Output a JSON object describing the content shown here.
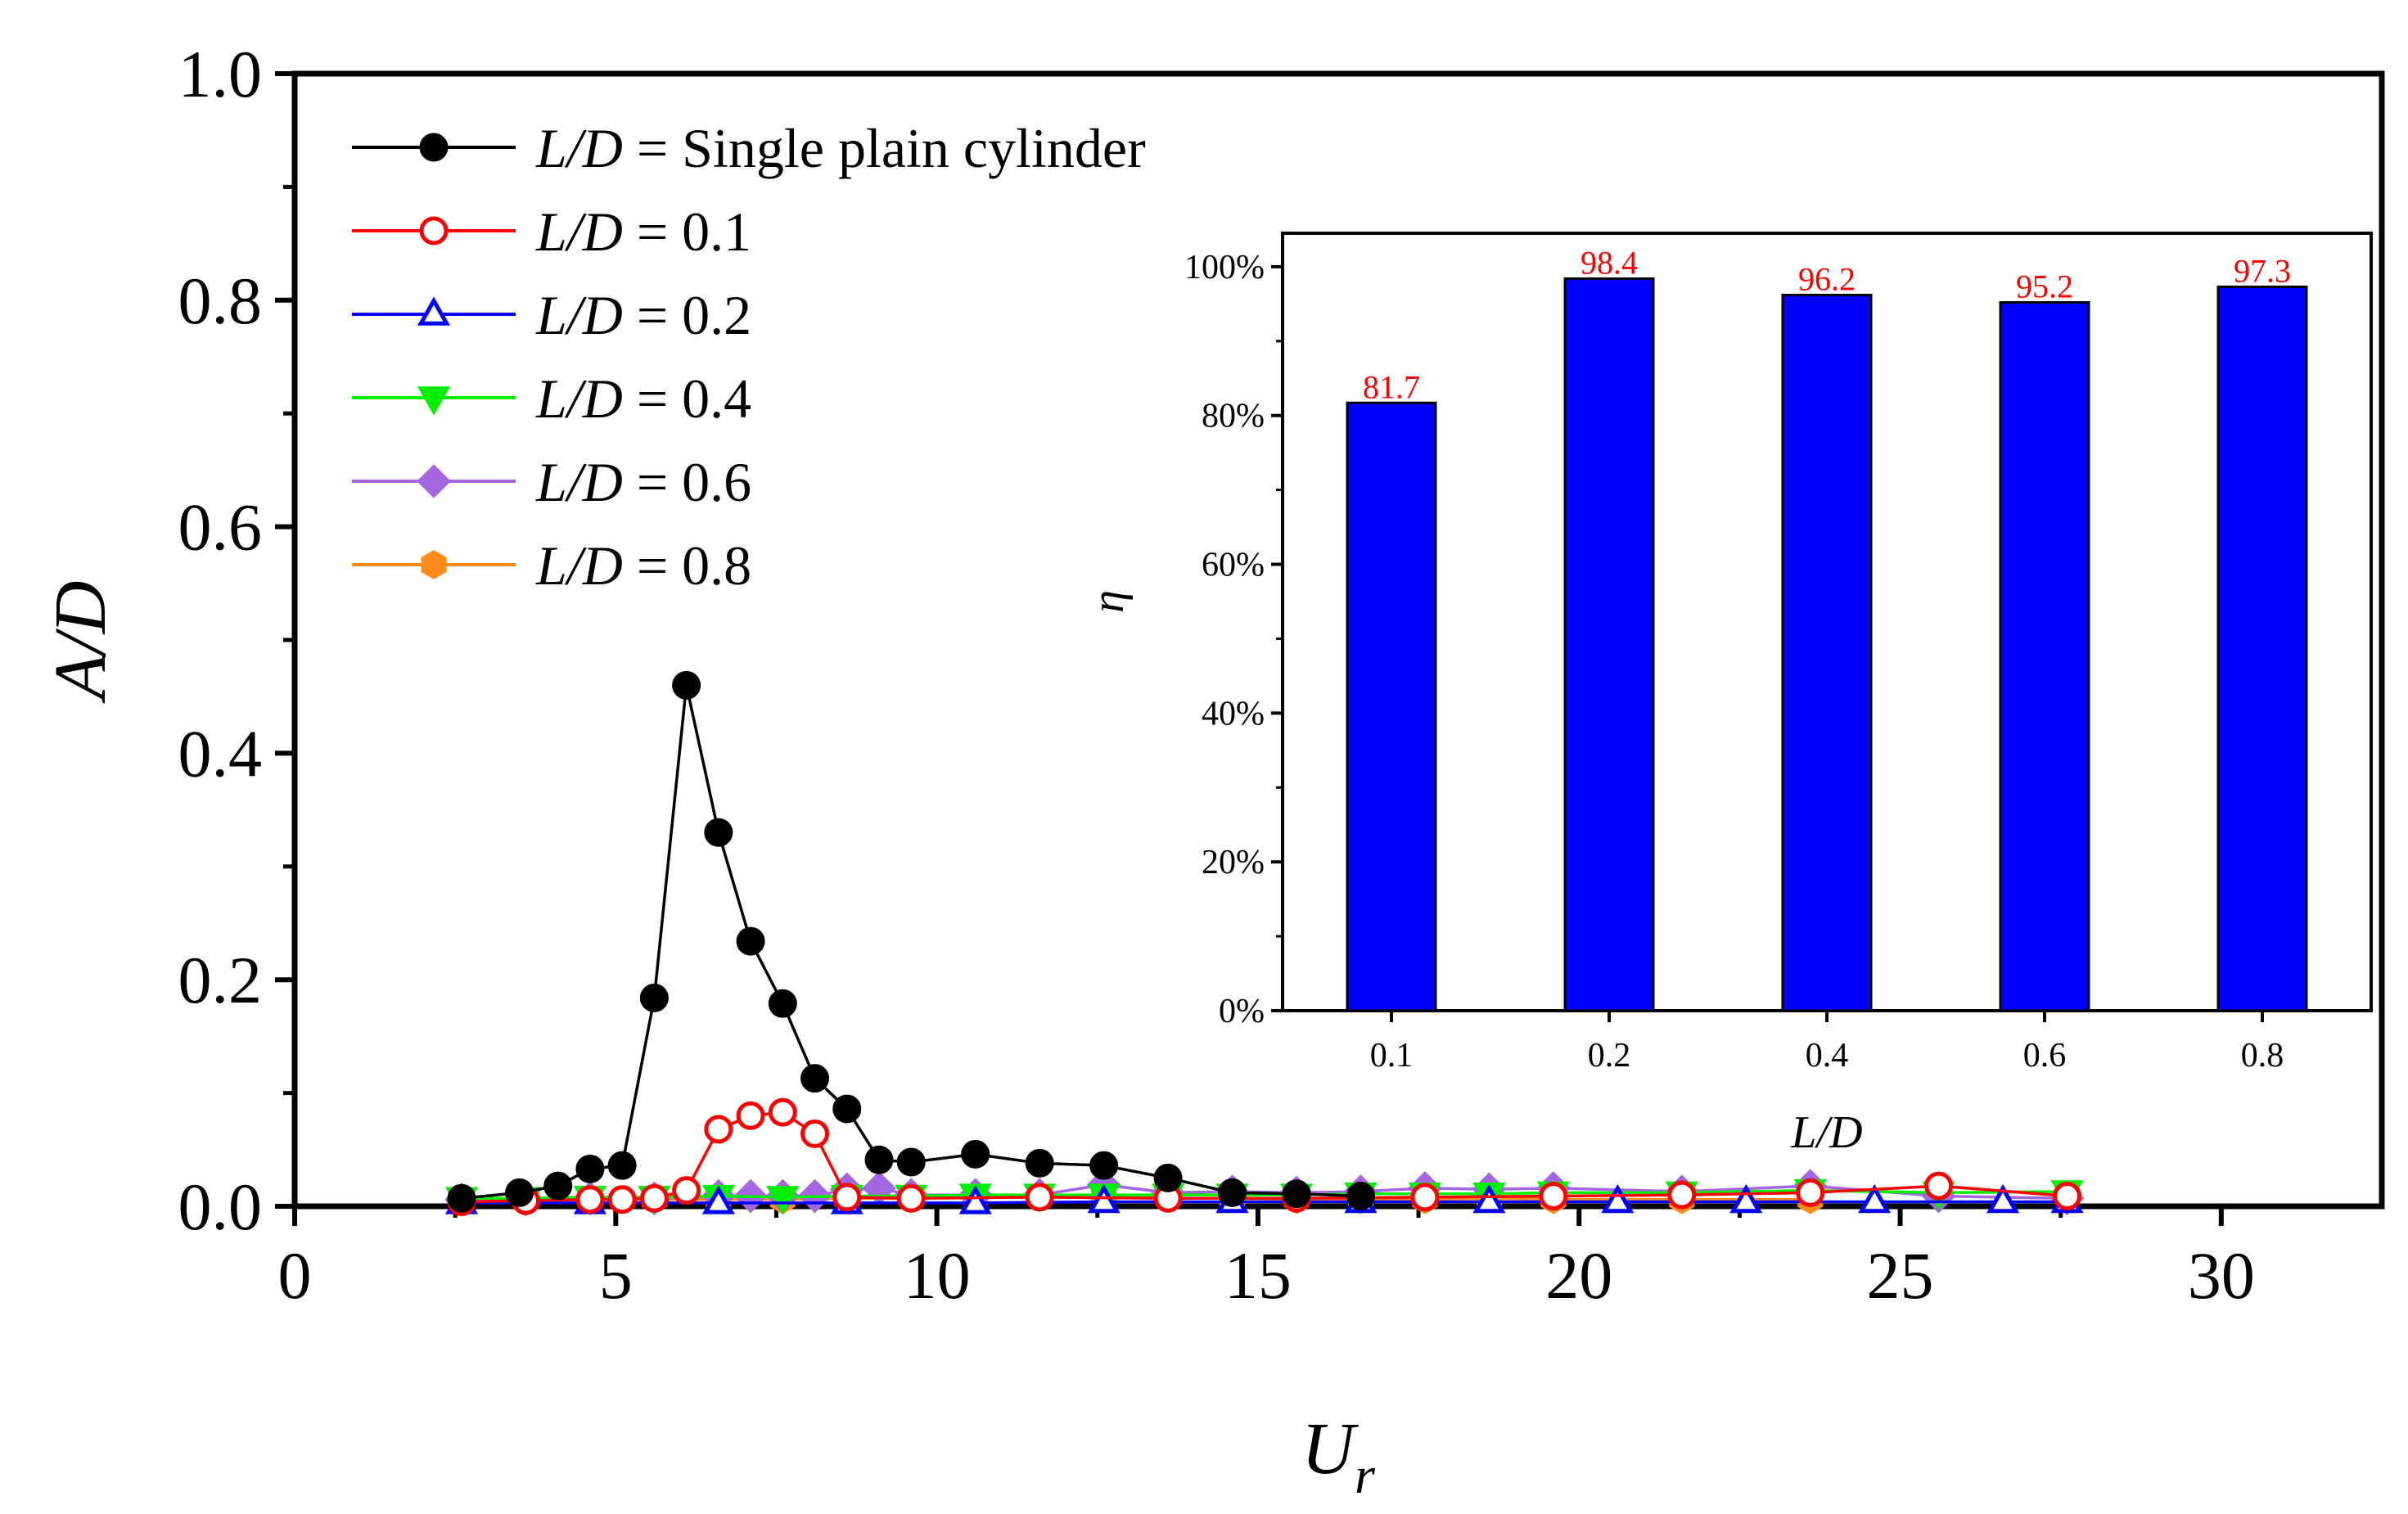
{
  "chart_data": [
    {
      "type": "line",
      "xlabel": "U",
      "xlabel_subscript": "r",
      "ylabel": "A/D",
      "xlim": [
        0,
        32.5
      ],
      "ylim": [
        0,
        1.0
      ],
      "xticks": [
        0,
        5,
        10,
        15,
        20,
        25,
        30
      ],
      "xtick_labels": [
        "0",
        "5",
        "10",
        "15",
        "20",
        "25",
        "30"
      ],
      "yticks": [
        0,
        0.2,
        0.4,
        0.6,
        0.8,
        1.0
      ],
      "ytick_labels": [
        "0.0",
        "0.2",
        "0.4",
        "0.6",
        "0.8",
        "1.0"
      ],
      "legend_position": "top-left",
      "series": [
        {
          "name": "L/D = Single plain cylinder",
          "legend_var": "L/D",
          "legend_eq": " = ",
          "legend_val": "Single plain cylinder",
          "color": "#000000",
          "marker": "circle",
          "filled": true,
          "x": [
            2.6,
            3.5,
            4.1,
            4.6,
            5.1,
            5.6,
            6.1,
            6.6,
            7.1,
            7.6,
            8.1,
            8.6,
            9.1,
            9.6,
            10.6,
            11.6,
            12.6,
            13.6,
            14.6,
            15.6,
            16.6
          ],
          "y": [
            0.007,
            0.012,
            0.018,
            0.033,
            0.036,
            0.184,
            0.46,
            0.33,
            0.234,
            0.179,
            0.113,
            0.086,
            0.041,
            0.039,
            0.046,
            0.038,
            0.036,
            0.025,
            0.012,
            0.011,
            0.009
          ]
        },
        {
          "name": "L/D = 0.1",
          "legend_var": "L/D",
          "legend_eq": " = ",
          "legend_val": "0.1",
          "color": "#ff0000",
          "marker": "circle",
          "filled": false,
          "x": [
            2.6,
            3.6,
            4.6,
            5.1,
            5.6,
            6.1,
            6.6,
            7.1,
            7.6,
            8.1,
            8.6,
            9.6,
            11.6,
            13.6,
            15.6,
            17.6,
            19.6,
            21.6,
            23.6,
            25.6,
            27.6
          ],
          "y": [
            0.004,
            0.005,
            0.006,
            0.006,
            0.007,
            0.014,
            0.068,
            0.08,
            0.083,
            0.064,
            0.008,
            0.007,
            0.008,
            0.007,
            0.007,
            0.008,
            0.009,
            0.01,
            0.012,
            0.018,
            0.009
          ]
        },
        {
          "name": "L/D = 0.2",
          "legend_var": "L/D",
          "legend_eq": " = ",
          "legend_val": "0.2",
          "color": "#0000ff",
          "marker": "triangle-up",
          "filled": false,
          "x": [
            2.6,
            4.6,
            6.6,
            8.6,
            10.6,
            12.6,
            14.6,
            16.6,
            18.6,
            20.6,
            22.6,
            24.6,
            26.6,
            27.6
          ],
          "y": [
            0.003,
            0.003,
            0.003,
            0.003,
            0.003,
            0.004,
            0.004,
            0.004,
            0.004,
            0.004,
            0.004,
            0.004,
            0.004,
            0.004
          ]
        },
        {
          "name": "L/D = 0.4",
          "legend_var": "L/D",
          "legend_eq": " = ",
          "legend_val": "0.4",
          "color": "#00ee00",
          "marker": "triangle-down",
          "filled": true,
          "x": [
            2.6,
            3.6,
            4.6,
            5.6,
            6.6,
            7.6,
            8.6,
            9.6,
            10.6,
            11.6,
            12.6,
            13.6,
            14.6,
            15.6,
            16.6,
            17.6,
            18.6,
            19.6,
            21.6,
            23.6,
            25.6,
            27.6
          ],
          "y": [
            0.007,
            0.007,
            0.008,
            0.008,
            0.009,
            0.008,
            0.009,
            0.009,
            0.01,
            0.01,
            0.01,
            0.01,
            0.01,
            0.01,
            0.011,
            0.011,
            0.011,
            0.012,
            0.012,
            0.014,
            0.012,
            0.013
          ]
        },
        {
          "name": "L/D = 0.6",
          "legend_var": "L/D",
          "legend_eq": " = ",
          "legend_val": "0.6",
          "color": "#a366e0",
          "marker": "diamond",
          "filled": true,
          "x": [
            2.6,
            3.6,
            4.6,
            5.6,
            6.6,
            7.1,
            7.6,
            8.1,
            8.6,
            9.1,
            9.6,
            10.6,
            11.6,
            12.6,
            13.6,
            14.6,
            15.6,
            16.6,
            17.6,
            18.6,
            19.6,
            21.6,
            23.6,
            25.6,
            27.6
          ],
          "y": [
            0.006,
            0.006,
            0.007,
            0.007,
            0.009,
            0.009,
            0.009,
            0.009,
            0.015,
            0.016,
            0.01,
            0.01,
            0.01,
            0.019,
            0.012,
            0.013,
            0.012,
            0.013,
            0.016,
            0.015,
            0.016,
            0.013,
            0.018,
            0.009,
            0.007
          ]
        },
        {
          "name": "L/D = 0.8",
          "legend_var": "L/D",
          "legend_eq": " = ",
          "legend_val": "0.8",
          "color": "#ff8c1a",
          "marker": "hexagon",
          "filled": true,
          "x": [
            2.6,
            3.6,
            4.6,
            5.6,
            6.6,
            7.6,
            8.6,
            9.6,
            10.6,
            11.6,
            12.6,
            13.6,
            14.6,
            15.6,
            16.6,
            17.6,
            18.6,
            19.6,
            21.6,
            23.6
          ],
          "y": [
            0.005,
            0.006,
            0.006,
            0.006,
            0.006,
            0.006,
            0.007,
            0.007,
            0.008,
            0.009,
            0.01,
            0.007,
            0.007,
            0.006,
            0.006,
            0.006,
            0.007,
            0.006,
            0.006,
            0.006
          ]
        }
      ]
    },
    {
      "type": "bar",
      "role": "inset",
      "xlabel": "L/D",
      "ylabel": "η",
      "categories": [
        "0.1",
        "0.2",
        "0.4",
        "0.6",
        "0.8"
      ],
      "values": [
        81.7,
        98.4,
        96.2,
        95.2,
        97.3
      ],
      "value_labels": [
        "81.7",
        "98.4",
        "96.2",
        "95.2",
        "97.3"
      ],
      "ylim": [
        0,
        104.5
      ],
      "yticks": [
        0,
        20,
        40,
        60,
        80,
        100
      ],
      "ytick_labels": [
        "0%",
        "20%",
        "40%",
        "60%",
        "80%",
        "100%"
      ],
      "bar_color": "#0000ff",
      "label_color": "#ff0000"
    }
  ]
}
